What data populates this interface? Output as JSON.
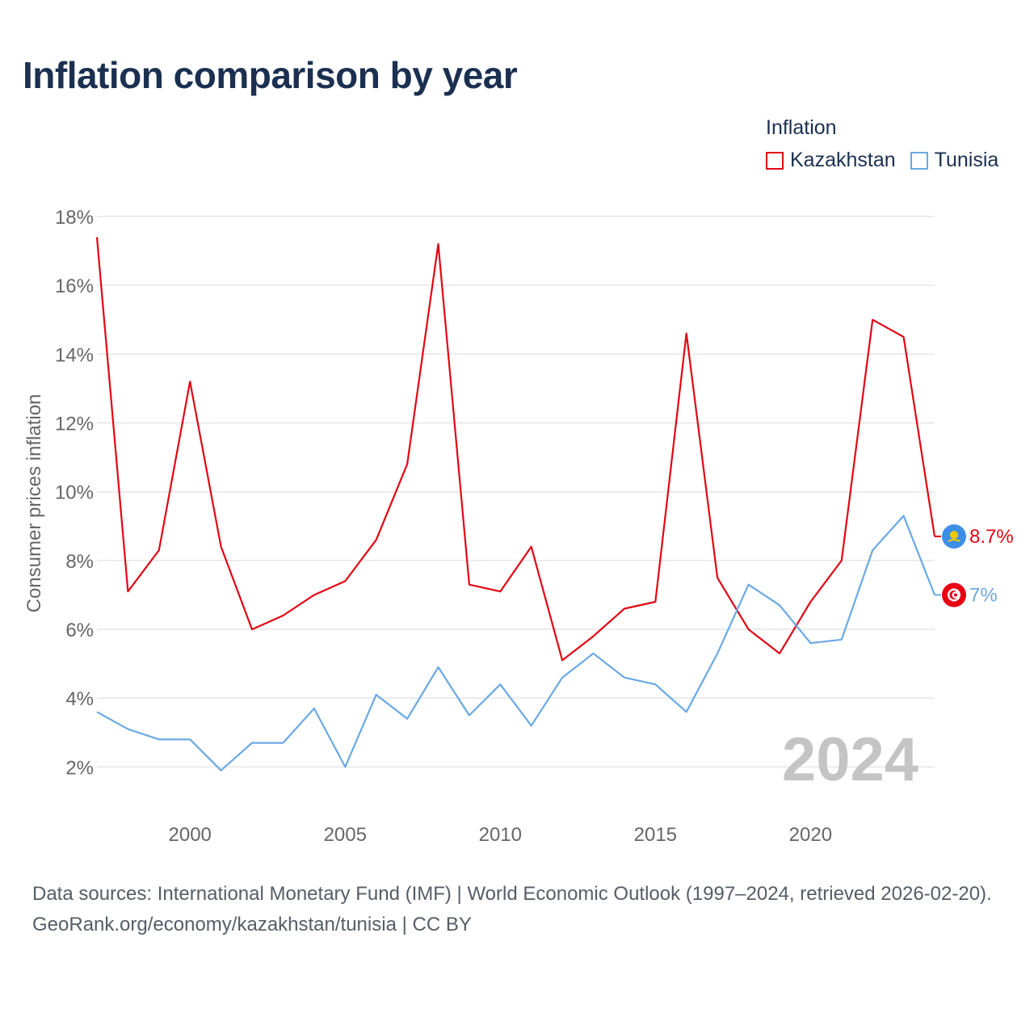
{
  "header": {
    "title": "Inflation comparison by year"
  },
  "legend": {
    "title": "Inflation",
    "items": [
      {
        "label": "Kazakhstan",
        "color": "#e30613"
      },
      {
        "label": "Tunisia",
        "color": "#6aa9e4"
      }
    ]
  },
  "watermark": {
    "year": "2024"
  },
  "end_labels": {
    "kazakhstan": "8.7%",
    "tunisia": "7%"
  },
  "footer": {
    "source": "Data sources: International Monetary Fund (IMF) | World Economic Outlook (1997–2024, retrieved 2026-02-20).",
    "credit": "GeoRank.org/economy/kazakhstan/tunisia | CC BY"
  },
  "chart_data": {
    "type": "line",
    "title": "Inflation comparison by year",
    "xlabel": "",
    "ylabel": "Consumer prices inflation",
    "x": [
      1997,
      1998,
      1999,
      2000,
      2001,
      2002,
      2003,
      2004,
      2005,
      2006,
      2007,
      2008,
      2009,
      2010,
      2011,
      2012,
      2013,
      2014,
      2015,
      2016,
      2017,
      2018,
      2019,
      2020,
      2021,
      2022,
      2023,
      2024
    ],
    "xlim": [
      1997,
      2024
    ],
    "ylim": [
      1,
      18
    ],
    "x_ticks": [
      2000,
      2005,
      2010,
      2015,
      2020
    ],
    "y_ticks": [
      2,
      4,
      6,
      8,
      10,
      12,
      14,
      16,
      18
    ],
    "y_tick_labels": [
      "2%",
      "4%",
      "6%",
      "8%",
      "10%",
      "12%",
      "14%",
      "16%",
      "18%"
    ],
    "grid": true,
    "legend_position": "top-right",
    "series": [
      {
        "name": "Kazakhstan",
        "color": "#e30613",
        "values": [
          17.4,
          7.1,
          8.3,
          13.2,
          8.4,
          6.0,
          6.4,
          7.0,
          7.4,
          8.6,
          10.8,
          17.2,
          7.3,
          7.1,
          8.4,
          5.1,
          5.8,
          6.6,
          6.8,
          14.6,
          7.5,
          6.0,
          5.3,
          6.8,
          8.0,
          15.0,
          14.5,
          8.7
        ]
      },
      {
        "name": "Tunisia",
        "color": "#6aa9e4",
        "values": [
          3.6,
          3.1,
          2.8,
          2.8,
          1.9,
          2.7,
          2.7,
          3.7,
          2.0,
          4.1,
          3.4,
          4.9,
          3.5,
          4.4,
          3.2,
          4.6,
          5.3,
          4.6,
          4.4,
          3.6,
          5.3,
          7.3,
          6.7,
          5.6,
          5.7,
          8.3,
          9.3,
          7.0
        ]
      }
    ]
  }
}
